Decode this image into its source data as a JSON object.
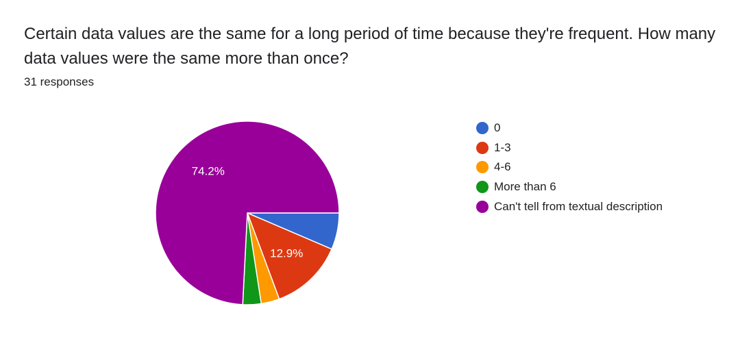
{
  "question": {
    "title": "Certain data values are the same for a long period of time because they're frequent.  How many data values were the same more than once?",
    "responses_label": "31 responses"
  },
  "chart_data": {
    "type": "pie",
    "total_responses": 31,
    "slices": [
      {
        "label": "0",
        "count": 2,
        "percent": 6.5,
        "color": "#3366cc",
        "label_shown": ""
      },
      {
        "label": "1-3",
        "count": 4,
        "percent": 12.9,
        "color": "#dc3912",
        "label_shown": "12.9%"
      },
      {
        "label": "4-6",
        "count": 1,
        "percent": 3.2,
        "color": "#ff9900",
        "label_shown": ""
      },
      {
        "label": "More than 6",
        "count": 1,
        "percent": 3.2,
        "color": "#109618",
        "label_shown": ""
      },
      {
        "label": "Can't tell from textual description",
        "count": 23,
        "percent": 74.2,
        "color": "#990099",
        "label_shown": "74.2%"
      }
    ],
    "legend_position": "right"
  }
}
